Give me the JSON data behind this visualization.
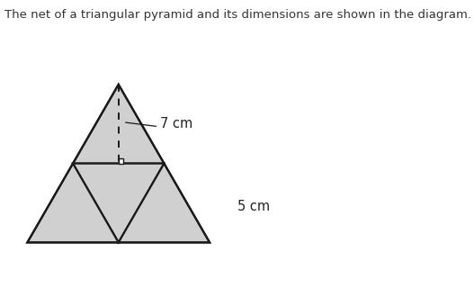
{
  "title_text": "The net of a triangular pyramid and its dimensions are shown in the diagram.",
  "title_fontsize": 9.5,
  "bg_color": "#ffffff",
  "fill_color": "#d0d0d0",
  "edge_color": "#1a1a1a",
  "line_width": 1.6,
  "label_7cm": "7 cm",
  "label_5cm": "5 cm",
  "label_fontsize": 10.5,
  "fig_width": 5.27,
  "fig_height": 3.2,
  "dpi": 100
}
